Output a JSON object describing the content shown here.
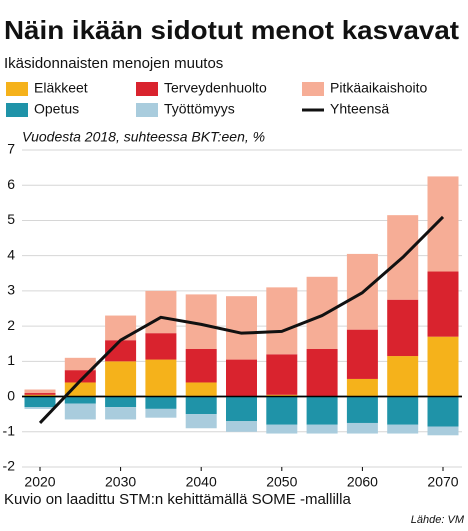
{
  "chart_data": {
    "type": "bar",
    "title": "Näin ikään sidotut menot kasvavat",
    "subtitle": "Ikäsidonnaisten menojen muutos",
    "note": "Vuodesta 2018, suhteessa BKT:een, %",
    "footer": "Kuvio on laadittu STM:n kehittämällä SOME -mallilla",
    "source": "Lähde: VM",
    "categories": [
      "2020",
      null,
      "2030",
      null,
      "2040",
      null,
      "2050",
      null,
      "2060",
      null,
      "2070"
    ],
    "series": [
      {
        "name": "Eläkkeet",
        "color": "#f5b21b",
        "type": "bar",
        "values": [
          0.05,
          0.4,
          1.0,
          1.05,
          0.4,
          0.0,
          0.05,
          0.0,
          0.5,
          1.15,
          1.7
        ]
      },
      {
        "name": "Terveydenhuolto",
        "color": "#d9232e",
        "type": "bar",
        "values": [
          0.05,
          0.35,
          0.6,
          0.75,
          0.95,
          1.05,
          1.15,
          1.35,
          1.4,
          1.6,
          1.85
        ]
      },
      {
        "name": "Pitkäaikaishoito",
        "color": "#f6ad96",
        "type": "bar",
        "values": [
          0.1,
          0.35,
          0.7,
          1.2,
          1.55,
          1.8,
          1.9,
          2.05,
          2.15,
          2.4,
          2.7
        ]
      },
      {
        "name": "Opetus",
        "color": "#1f93a8",
        "type": "bar",
        "values": [
          -0.3,
          -0.2,
          -0.3,
          -0.35,
          -0.5,
          -0.7,
          -0.8,
          -0.8,
          -0.75,
          -0.8,
          -0.85
        ]
      },
      {
        "name": "Työttömyys",
        "color": "#a9ccdd",
        "type": "bar",
        "values": [
          -0.05,
          -0.45,
          -0.35,
          -0.25,
          -0.4,
          -0.3,
          -0.25,
          -0.25,
          -0.3,
          -0.25,
          -0.25
        ]
      },
      {
        "name": "Yhteensä",
        "color": "#111111",
        "type": "line",
        "values": [
          -0.75,
          0.45,
          1.6,
          2.25,
          2.05,
          1.8,
          1.85,
          2.3,
          2.95,
          3.95,
          5.1
        ]
      }
    ],
    "ylim": [
      -2,
      7
    ],
    "yticks": [
      -2,
      -1,
      0,
      1,
      2,
      3,
      4,
      5,
      6,
      7
    ],
    "grid": true
  }
}
